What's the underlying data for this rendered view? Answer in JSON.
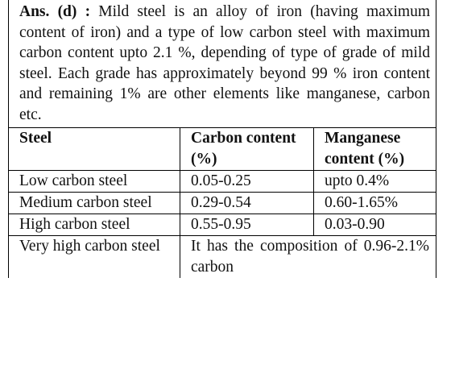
{
  "answer": {
    "label": "Ans. (d) :",
    "text": "Mild steel is an alloy of iron (having maximum content of iron) and a type of low carbon steel with maximum carbon content upto 2.1 %, depending of type of grade of mild steel. Each grade has approximately beyond 99 % iron content and remaining 1% are other elements like manganese, carbon etc."
  },
  "table": {
    "header": [
      "Steel",
      "Carbon content (%)",
      "Manganese content (%)"
    ],
    "rows": [
      [
        "Low carbon steel",
        "0.05-0.25",
        "upto 0.4%"
      ],
      [
        "Medium carbon steel",
        "0.29-0.54",
        "0.60-1.65%"
      ],
      [
        "High carbon steel",
        "0.55-0.95",
        "0.03-0.90"
      ],
      [
        "Very high carbon steel",
        "It has the composition of 0.96-2.1% carbon"
      ]
    ]
  }
}
